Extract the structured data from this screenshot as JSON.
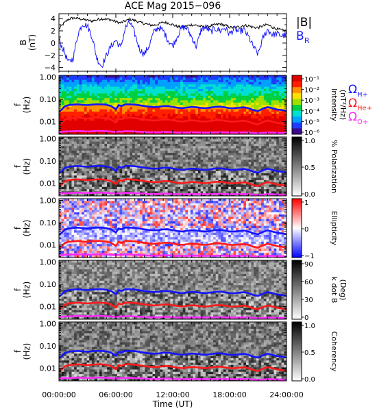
{
  "figure": {
    "title": "ACE Mag 2015−096"
  },
  "colors": {
    "Bmag": "#000000",
    "BR": "#1414ff",
    "Omega_H": "#1414ff",
    "Omega_He": "#ff1a1a",
    "Omega_O": "#ff2aff"
  },
  "chart_data": [
    {
      "type": "line",
      "panel": "B",
      "ylabel_main": "B",
      "ylabel_unit": "(nT)",
      "ylim": [
        -4.6,
        4.8
      ],
      "yticks": [
        "4",
        "2",
        "0",
        "−2",
        "−4"
      ],
      "ytick_values": [
        4,
        2,
        0,
        -2,
        -4
      ],
      "xlim_hours": [
        0,
        24
      ],
      "legend": {
        "placement": "right",
        "bmag": "|B|",
        "br_main": "B",
        "br_sub": "R"
      },
      "series": [
        {
          "key": "bmag",
          "x": [
            0,
            0.5,
            1,
            1.5,
            2,
            2.5,
            3,
            3.5,
            4,
            4.5,
            5,
            5.5,
            6,
            6.5,
            7,
            7.5,
            8,
            8.5,
            9,
            9.5,
            10,
            10.5,
            11,
            11.5,
            12,
            12.5,
            13,
            13.5,
            14,
            14.5,
            15,
            15.5,
            16,
            16.5,
            17,
            17.5,
            18,
            18.5,
            19,
            19.5,
            20,
            20.5,
            21,
            21.5,
            22,
            22.5,
            23,
            23.5,
            24
          ],
          "y": [
            2.3,
            3.2,
            3.9,
            4.1,
            4.0,
            3.9,
            3.7,
            3.6,
            3.8,
            4.0,
            3.9,
            3.8,
            3.5,
            3.3,
            3.6,
            3.9,
            3.7,
            3.4,
            3.2,
            3.0,
            2.9,
            3.1,
            3.4,
            3.3,
            3.0,
            2.7,
            2.6,
            2.8,
            3.0,
            2.9,
            2.7,
            2.6,
            2.8,
            3.0,
            3.1,
            2.9,
            2.6,
            2.5,
            2.7,
            2.9,
            2.8,
            2.6,
            2.5,
            2.8,
            3.0,
            2.6,
            2.3,
            2.1,
            2.0
          ]
        },
        {
          "key": "br",
          "x": [
            0,
            0.5,
            1,
            1.5,
            2,
            2.5,
            3,
            3.5,
            4,
            4.5,
            5,
            5.5,
            6,
            6.5,
            7,
            7.5,
            8,
            8.5,
            9,
            9.5,
            10,
            10.5,
            11,
            11.5,
            12,
            12.5,
            13,
            13.5,
            14,
            14.5,
            15,
            15.5,
            16,
            16.5,
            17,
            17.5,
            18,
            18.5,
            19,
            19.5,
            20,
            20.5,
            21,
            21.5,
            22,
            22.5,
            23,
            23.5,
            24
          ],
          "y": [
            0.5,
            -1.2,
            -3.2,
            -2.5,
            1.5,
            3.2,
            2.8,
            1.0,
            -2.5,
            -3.8,
            -2.0,
            -0.5,
            0.5,
            -0.8,
            2.5,
            3.4,
            1.5,
            -1.0,
            -1.8,
            -0.5,
            1.8,
            2.6,
            2.0,
            0.5,
            -0.5,
            1.2,
            2.6,
            2.4,
            1.0,
            -0.6,
            2.2,
            2.6,
            1.8,
            2.4,
            2.0,
            2.5,
            1.5,
            2.3,
            1.8,
            2.2,
            1.0,
            -0.6,
            -1.8,
            0.8,
            2.2,
            1.4,
            1.5,
            1.2,
            1.3
          ]
        }
      ]
    },
    {
      "type": "heatmap",
      "panel": "spectral-intensity",
      "ylabel_main": "f",
      "ylabel_unit": "(Hz)",
      "ylim_hz": [
        0.0027,
        1.2
      ],
      "yscale": "log",
      "yticks": [
        "1.00",
        "0.10",
        "0.01"
      ],
      "ytick_values": [
        1.0,
        0.1,
        0.01
      ],
      "colorbar": {
        "label": "Intensity",
        "unit": "(nT²/Hz)",
        "ticks": [
          "10⁻¹",
          "10⁻²",
          "10⁻³",
          "10⁻⁴",
          "10⁻⁵",
          "10⁻⁶"
        ],
        "scale": "rainbow"
      },
      "legend": {
        "placement": "right",
        "h_main": "Ω",
        "h_sub": "H+",
        "he_main": "Ω",
        "he_sub": "He+",
        "o_main": "Ω",
        "o_sub": "O+"
      }
    },
    {
      "type": "heatmap",
      "panel": "polarization",
      "ylabel_main": "f",
      "ylabel_unit": "(Hz)",
      "yscale": "log",
      "yticks": [
        "1.00",
        "0.10",
        "0.01"
      ],
      "ytick_values": [
        1.0,
        0.1,
        0.01
      ],
      "colorbar": {
        "label": "% Polarization",
        "ticks": [
          "1.0",
          "0.5",
          "0.0"
        ],
        "scale": "gray"
      }
    },
    {
      "type": "heatmap",
      "panel": "ellipticity",
      "ylabel_main": "f",
      "ylabel_unit": "(Hz)",
      "yscale": "log",
      "yticks": [
        "1.00",
        "0.10",
        "0.01"
      ],
      "ytick_values": [
        1.0,
        0.1,
        0.01
      ],
      "colorbar": {
        "label": "Ellipticity",
        "ticks": [
          "1",
          "0",
          "−1"
        ],
        "scale": "bwr"
      }
    },
    {
      "type": "heatmap",
      "panel": "k-dot-b",
      "ylabel_main": "f",
      "ylabel_unit": "(Hz)",
      "yscale": "log",
      "yticks": [
        "1.00",
        "0.10",
        "0.01"
      ],
      "ytick_values": [
        1.0,
        0.1,
        0.01
      ],
      "colorbar": {
        "label": "k dot B",
        "unit": "(Deg)",
        "ticks": [
          "90",
          "60",
          "30",
          "0"
        ],
        "scale": "gray"
      }
    },
    {
      "type": "heatmap",
      "panel": "coherency",
      "ylabel_main": "f",
      "ylabel_unit": "(Hz)",
      "yscale": "log",
      "yticks": [
        "1.00",
        "0.10",
        "0.01"
      ],
      "ytick_values": [
        1.0,
        0.1,
        0.01
      ],
      "colorbar": {
        "label": "Coherency",
        "ticks": [
          "1.0",
          "0.5",
          "0.0"
        ],
        "scale": "gray"
      }
    }
  ],
  "gyro": {
    "x": [
      0,
      0.3,
      0.6,
      1,
      1.5,
      2,
      2.5,
      3,
      3.5,
      4,
      4.5,
      5,
      5.5,
      6,
      6.3,
      6.6,
      7,
      7.5,
      8,
      8.5,
      9,
      9.5,
      10,
      10.5,
      11,
      11.5,
      12,
      12.5,
      13,
      13.5,
      14,
      14.5,
      15,
      15.5,
      16,
      16.5,
      17,
      17.5,
      18,
      18.5,
      19,
      19.5,
      20,
      20.5,
      21,
      21.5,
      22,
      22.5,
      23,
      23.5,
      24
    ],
    "omega_h_hz": [
      0.028,
      0.035,
      0.048,
      0.055,
      0.058,
      0.06,
      0.057,
      0.055,
      0.058,
      0.06,
      0.06,
      0.057,
      0.05,
      0.036,
      0.055,
      0.05,
      0.06,
      0.06,
      0.058,
      0.054,
      0.05,
      0.047,
      0.045,
      0.046,
      0.05,
      0.05,
      0.046,
      0.042,
      0.04,
      0.043,
      0.046,
      0.044,
      0.041,
      0.04,
      0.043,
      0.046,
      0.047,
      0.044,
      0.04,
      0.04,
      0.042,
      0.044,
      0.04,
      0.033,
      0.03,
      0.038,
      0.045,
      0.04,
      0.035,
      0.033,
      0.03
    ],
    "omega_o_hz": [
      0.0034,
      0.0035,
      0.0036,
      0.0036,
      0.0037,
      0.0038,
      0.0037,
      0.0036,
      0.0037,
      0.0038,
      0.0038,
      0.0037,
      0.0036,
      0.0034,
      0.0036,
      0.0035,
      0.0037,
      0.0037,
      0.0036,
      0.0035,
      0.0034,
      0.0033,
      0.0033,
      0.0033,
      0.0034,
      0.0034,
      0.0033,
      0.0032,
      0.0032,
      0.0032,
      0.0033,
      0.0033,
      0.0032,
      0.0032,
      0.0032,
      0.0033,
      0.0033,
      0.0033,
      0.0032,
      0.0032,
      0.0032,
      0.0033,
      0.0032,
      0.0031,
      0.003,
      0.0031,
      0.0032,
      0.0032,
      0.0031,
      0.0031,
      0.003
    ]
  },
  "xaxis": {
    "label": "Time (UT)",
    "xlim_hours": [
      0,
      24
    ],
    "ticks": [
      "00:00:00",
      "06:00:00",
      "12:00:00",
      "18:00:00",
      "24:00:00"
    ],
    "tick_hours": [
      0,
      6,
      12,
      18,
      24
    ]
  }
}
